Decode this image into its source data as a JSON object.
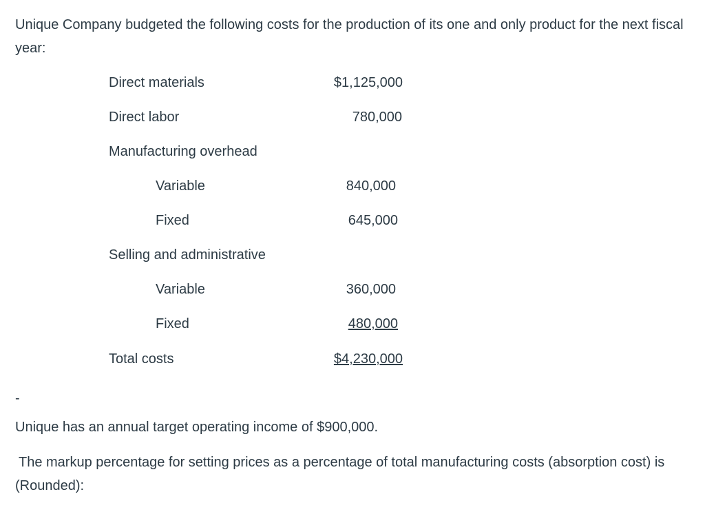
{
  "intro": "Unique Company budgeted the following costs for the production of its one and only product for the next fiscal year:",
  "table": {
    "rows": [
      [
        "Direct materials",
        "$1,125,000"
      ],
      [
        "Direct labor",
        "780,000"
      ],
      [
        "Manufacturing overhead"
      ],
      [
        "Variable",
        "840,000"
      ],
      [
        "Fixed",
        "645,000"
      ],
      [
        "Selling and administrative"
      ],
      [
        "Variable",
        "360,000"
      ],
      [
        "Fixed",
        "480,000"
      ],
      [
        "Total costs",
        "$4,230,000"
      ]
    ]
  },
  "separator": "-",
  "target": "Unique has an annual target operating income of $900,000.",
  "question": "The markup percentage for setting prices as a percentage of total manufacturing costs (absorption cost) is (Rounded):"
}
